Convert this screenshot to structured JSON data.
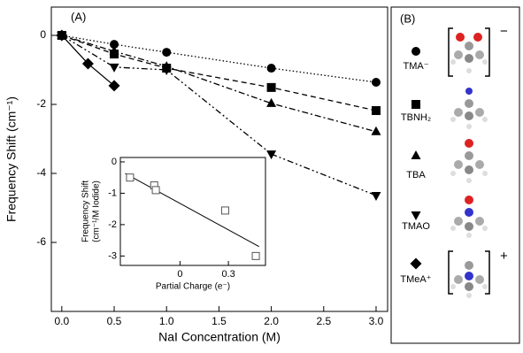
{
  "chart_data": [
    {
      "type": "line",
      "panel_label": "(A)",
      "xlabel": "NaI Concentration (M)",
      "ylabel": "Frequency Shift (cm⁻¹)",
      "xlim": [
        -0.1,
        3.11
      ],
      "ylim": [
        -8.0,
        0.82
      ],
      "xticks": [
        {
          "value": 0,
          "label": "0.0"
        },
        {
          "value": 0.5,
          "label": "0.5"
        },
        {
          "value": 1,
          "label": "1.0"
        },
        1.5,
        {
          "value": 2,
          "label": "2.0"
        },
        2.5,
        {
          "value": 3,
          "label": "3.0"
        }
      ],
      "yticks": [
        0,
        -2,
        -4,
        -6
      ],
      "series": [
        {
          "name": "TMA⁻",
          "marker": "circle",
          "dash": "dotted",
          "color": "#000000",
          "x": [
            0,
            0.5,
            1,
            2,
            3
          ],
          "values": [
            0,
            -0.26,
            -0.49,
            -0.95,
            -1.36
          ]
        },
        {
          "name": "TBNH₂",
          "marker": "square",
          "dash": "dashed",
          "color": "#000000",
          "x": [
            0,
            0.5,
            1,
            2,
            3
          ],
          "values": [
            0,
            -0.54,
            -0.95,
            -1.51,
            -2.18
          ]
        },
        {
          "name": "TBA",
          "marker": "triangle-up",
          "dash": "dashdot",
          "color": "#000000",
          "x": [
            0,
            0.5,
            1,
            2,
            3
          ],
          "values": [
            0,
            -0.46,
            -0.9,
            -1.97,
            -2.79
          ]
        },
        {
          "name": "TMAO",
          "marker": "triangle-down",
          "dash": "dashdotdot",
          "color": "#000000",
          "x": [
            0,
            0.5,
            1,
            2,
            3
          ],
          "values": [
            0,
            -0.92,
            -1.0,
            -3.44,
            -4.64
          ]
        },
        {
          "name": "TMeA⁺",
          "marker": "diamond",
          "dash": "solid",
          "color": "#000000",
          "x": [
            0,
            0.25,
            0.5
          ],
          "values": [
            0,
            -0.82,
            -1.46
          ]
        }
      ]
    },
    {
      "type": "scatter",
      "xlabel": "Partial Charge (e⁻)",
      "ylabel": [
        "Frequency Shift",
        "(cm⁻¹/M Iodide)"
      ],
      "xlim": [
        -0.37,
        0.53
      ],
      "ylim": [
        -3.3,
        0.14
      ],
      "xticks": [
        0,
        0.3
      ],
      "yticks": [
        0,
        -1,
        -2,
        -3
      ],
      "x": [
        -0.31,
        -0.16,
        -0.15,
        0.28,
        0.47
      ],
      "values": [
        -0.5,
        -0.75,
        -0.9,
        -1.55,
        -3.0
      ],
      "fit_line": {
        "x": [
          -0.34,
          0.49
        ],
        "values": [
          -0.37,
          -2.7
        ]
      }
    }
  ],
  "panel_b": {
    "label": "(B)",
    "charges": [
      "−",
      "+"
    ]
  }
}
